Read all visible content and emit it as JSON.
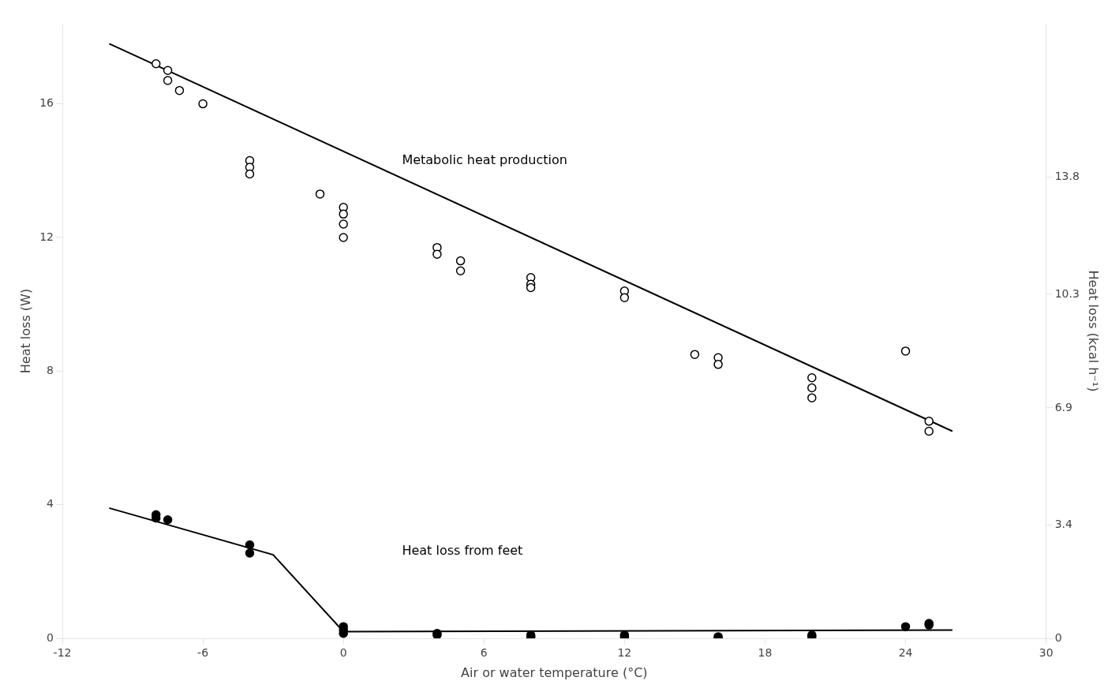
{
  "chart_data": {
    "type": "scatter",
    "xlabel": "Air or water temperature (°C)",
    "ylabel": "Heat loss (W)",
    "y2label": "Heat loss (kcal h⁻¹)",
    "xlim": [
      -12,
      30
    ],
    "xticks": [
      -12,
      -6,
      0,
      6,
      12,
      18,
      24,
      30
    ],
    "ylim": [
      0,
      18.4
    ],
    "yticks": [
      0,
      4,
      8,
      12,
      16
    ],
    "y2lim": [
      0,
      18.4
    ],
    "y2ticks": [
      0,
      3.4,
      6.9,
      10.3,
      13.8
    ],
    "grid": false,
    "series": [
      {
        "type": "scatter",
        "marker": "open_circle",
        "color": "#000000",
        "x": [
          -8,
          -7.5,
          -7.5,
          -7,
          -6,
          -4,
          -4,
          -4,
          -1,
          0,
          0,
          0,
          0,
          4,
          4,
          5,
          5,
          8,
          8,
          8,
          12,
          12,
          15,
          16,
          16,
          20,
          20,
          20,
          24,
          25,
          25
        ],
        "values": [
          17.2,
          17.0,
          16.7,
          16.4,
          16.0,
          14.3,
          14.1,
          13.9,
          13.3,
          12.9,
          12.7,
          12.4,
          12.0,
          11.7,
          11.5,
          11.3,
          11.0,
          10.8,
          10.6,
          10.5,
          10.4,
          10.2,
          8.5,
          8.4,
          8.2,
          7.8,
          7.5,
          7.2,
          8.6,
          6.5,
          6.2
        ]
      },
      {
        "type": "line",
        "line_style": "solid",
        "color": "#000000",
        "x": [
          -10,
          26
        ],
        "values": [
          17.8,
          6.2
        ]
      },
      {
        "type": "scatter",
        "marker": "filled_circle",
        "color": "#000000",
        "x": [
          -8,
          -8,
          -7.5,
          -4,
          -4,
          0,
          0,
          0,
          4,
          4,
          8,
          8,
          8,
          12,
          12,
          16,
          16,
          20,
          20,
          24,
          25,
          25
        ],
        "values": [
          3.7,
          3.6,
          3.55,
          2.8,
          2.55,
          0.35,
          0.25,
          0.15,
          0.15,
          0.1,
          0.1,
          0.05,
          0.05,
          0.1,
          0.05,
          0.05,
          0.02,
          0.1,
          0.05,
          0.35,
          0.4,
          0.45
        ]
      },
      {
        "type": "line",
        "line_style": "solid",
        "color": "#000000",
        "x": [
          -10,
          -3,
          0,
          26
        ],
        "values": [
          3.9,
          2.5,
          0.2,
          0.25
        ]
      }
    ],
    "annotations": [
      {
        "text": "Metabolic heat production",
        "x": 2.5,
        "y": 14.2
      },
      {
        "text": "Heat loss from feet",
        "x": 2.5,
        "y": 2.5
      }
    ]
  }
}
